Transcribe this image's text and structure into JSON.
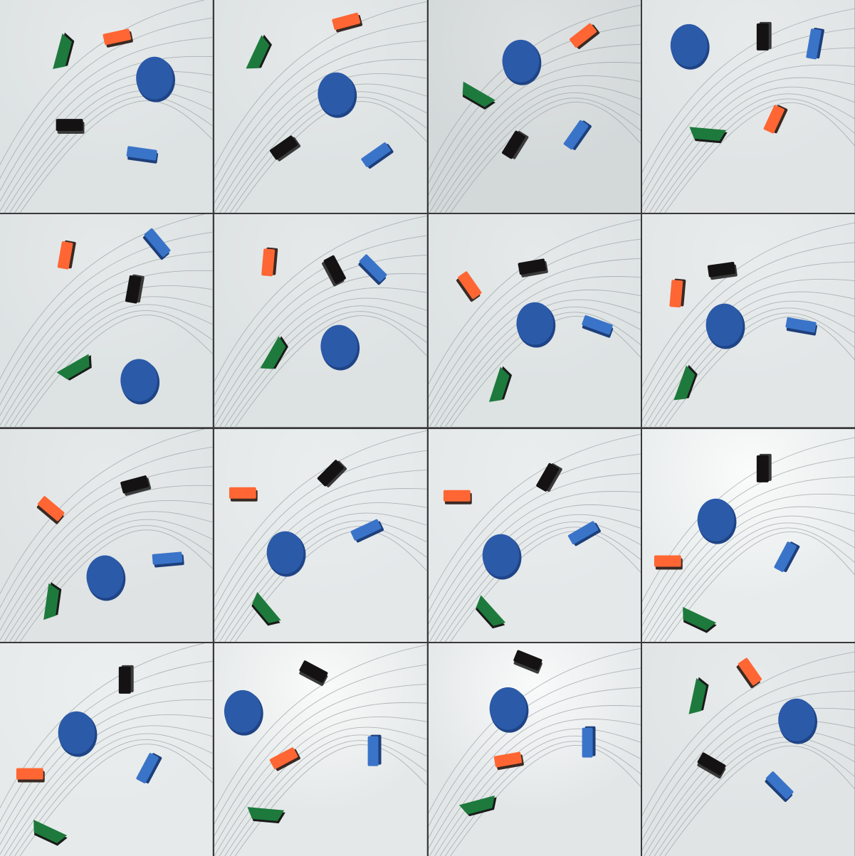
{
  "grid": {
    "rows": 4,
    "columns": 4,
    "total_frames": 16
  },
  "colors": {
    "board": "#dde2e3",
    "blue": "#2b5aa8",
    "blue_dark": "#1f4486",
    "orange": "#ff6633",
    "black": "#141212",
    "green": "#1d7a3c",
    "line": "#9aa2a6"
  },
  "icons": [
    "blue-disc-icon",
    "orange-block-icon",
    "black-block-icon",
    "blue-block-icon",
    "green-wedge-icon"
  ]
}
